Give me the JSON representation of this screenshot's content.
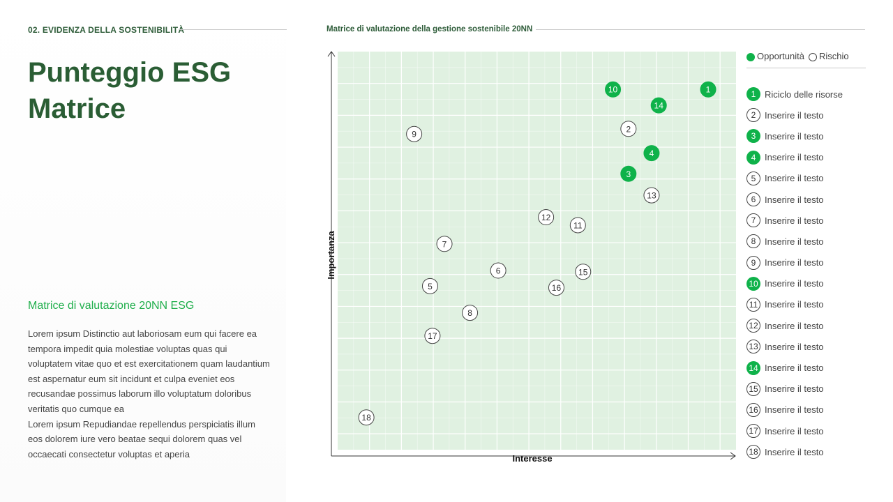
{
  "header": {
    "section": "02. EVIDENZA DELLA SOSTENIBILITÀ",
    "title_line1": "Punteggio ESG",
    "title_line2": "Matrice"
  },
  "left": {
    "subtitle": "Matrice di valutazione 20NN ESG",
    "paragraph1": "Lorem ipsum Distinctio aut laboriosam eum qui facere ea tempora impedit quia molestiae voluptas quas qui voluptatem vitae quo et est exercitationem quam laudantium est aspernatur eum sit incidunt et culpa eveniet eos recusandae possimus laborum illo voluptatum doloribus veritatis quo cumque ea",
    "paragraph2": "Lorem ipsum Repudiandae repellendus perspiciatis illum eos dolorem iure vero beatae sequi dolorem quas vel occaecati consectetur voluptas et aperia"
  },
  "chart_title": "Matrice di valutazione della gestione sostenibile 20NN",
  "legend": {
    "opportunity": "Opportunità",
    "risk": "Rischio"
  },
  "colors": {
    "accent": "#0fb24a",
    "title": "#2a5d34",
    "plot_bg": "#e0f1e1",
    "grid": "#ffffff"
  },
  "chart_data": {
    "type": "scatter",
    "xlabel": "Interesse",
    "ylabel": "Importanza",
    "xlim": [
      0,
      100
    ],
    "ylim": [
      0,
      100
    ],
    "grid": true,
    "legend_position": "top-right",
    "series": [
      {
        "name": "Opportunità",
        "ids": [
          1,
          3,
          4,
          10,
          14
        ]
      },
      {
        "name": "Rischio",
        "ids": [
          2,
          5,
          6,
          7,
          8,
          9,
          11,
          12,
          13,
          15,
          16,
          17,
          18
        ]
      }
    ],
    "points": [
      {
        "id": 1,
        "x": 93.0,
        "y": 90.5,
        "type": "opportunity",
        "label": "Riciclo delle risorse"
      },
      {
        "id": 2,
        "x": 73.0,
        "y": 80.6,
        "type": "risk",
        "label": "Inserire il testo"
      },
      {
        "id": 3,
        "x": 73.0,
        "y": 69.3,
        "type": "opportunity",
        "label": "Inserire il testo"
      },
      {
        "id": 4,
        "x": 78.8,
        "y": 74.5,
        "type": "opportunity",
        "label": "Inserire il testo"
      },
      {
        "id": 5,
        "x": 23.2,
        "y": 41.1,
        "type": "risk",
        "label": "Inserire il testo"
      },
      {
        "id": 6,
        "x": 40.3,
        "y": 45.0,
        "type": "risk",
        "label": "Inserire il testo"
      },
      {
        "id": 7,
        "x": 26.8,
        "y": 51.7,
        "type": "risk",
        "label": "Inserire il testo"
      },
      {
        "id": 8,
        "x": 33.2,
        "y": 34.4,
        "type": "risk",
        "label": "Inserire il testo"
      },
      {
        "id": 9,
        "x": 19.2,
        "y": 79.3,
        "type": "risk",
        "label": "Inserire il testo"
      },
      {
        "id": 10,
        "x": 69.1,
        "y": 90.5,
        "type": "opportunity",
        "label": "Inserire il testo"
      },
      {
        "id": 11,
        "x": 60.3,
        "y": 56.4,
        "type": "risk",
        "label": "Inserire il testo"
      },
      {
        "id": 12,
        "x": 52.3,
        "y": 58.4,
        "type": "risk",
        "label": "Inserire il testo"
      },
      {
        "id": 13,
        "x": 78.8,
        "y": 63.9,
        "type": "risk",
        "label": "Inserire il testo"
      },
      {
        "id": 14,
        "x": 80.6,
        "y": 86.5,
        "type": "opportunity",
        "label": "Inserire il testo"
      },
      {
        "id": 15,
        "x": 61.6,
        "y": 44.7,
        "type": "risk",
        "label": "Inserire il testo"
      },
      {
        "id": 16,
        "x": 54.9,
        "y": 40.7,
        "type": "risk",
        "label": "Inserire il testo"
      },
      {
        "id": 17,
        "x": 23.8,
        "y": 28.6,
        "type": "risk",
        "label": "Inserire il testo"
      },
      {
        "id": 18,
        "x": 7.2,
        "y": 8.1,
        "type": "risk",
        "label": "Inserire il testo"
      }
    ]
  }
}
